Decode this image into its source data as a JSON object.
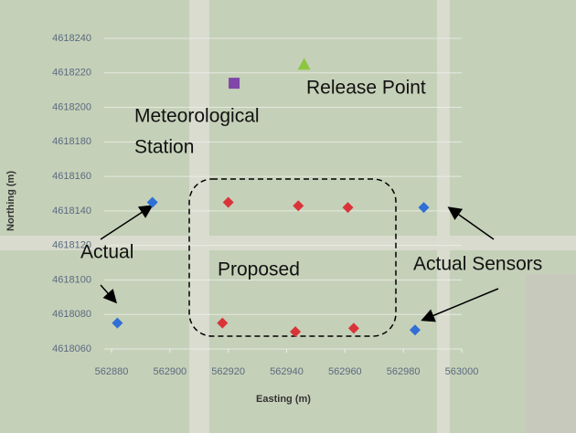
{
  "chart_data": {
    "type": "scatter",
    "xlabel": "Easting (m)",
    "ylabel": "Northing (m)",
    "xlim": [
      562880,
      563000
    ],
    "xticks": [
      562880,
      562900,
      562920,
      562940,
      562960,
      562980,
      563000
    ],
    "ylim": [
      4618060,
      4618240
    ],
    "yticks": [
      4618060,
      4618080,
      4618100,
      4618120,
      4618140,
      4618160,
      4618180,
      4618200,
      4618220,
      4618240
    ],
    "grid": true,
    "series": [
      {
        "color": "#2f6fd6",
        "marker": "diamond",
        "x": [
          562894,
          562882,
          562987,
          562984
        ],
        "values": [
          4618145,
          4618075,
          4618142,
          4618071
        ]
      },
      {
        "color": "#d8343a",
        "marker": "diamond",
        "x": [
          562920,
          562944,
          562961,
          562918,
          562943,
          562963
        ],
        "values": [
          4618145,
          4618143,
          4618142,
          4618075,
          4618070,
          4618072
        ]
      },
      {
        "color": "#8046a8",
        "marker": "square",
        "x": [
          562922
        ],
        "values": [
          4618214
        ]
      },
      {
        "color": "#8cc63f",
        "marker": "triangle",
        "x": [
          562946
        ],
        "values": [
          4618225
        ]
      }
    ],
    "annotations": [
      "Release Point",
      "Meteorological",
      "Station",
      "Actual",
      "Proposed",
      "Actual Sensors"
    ]
  }
}
